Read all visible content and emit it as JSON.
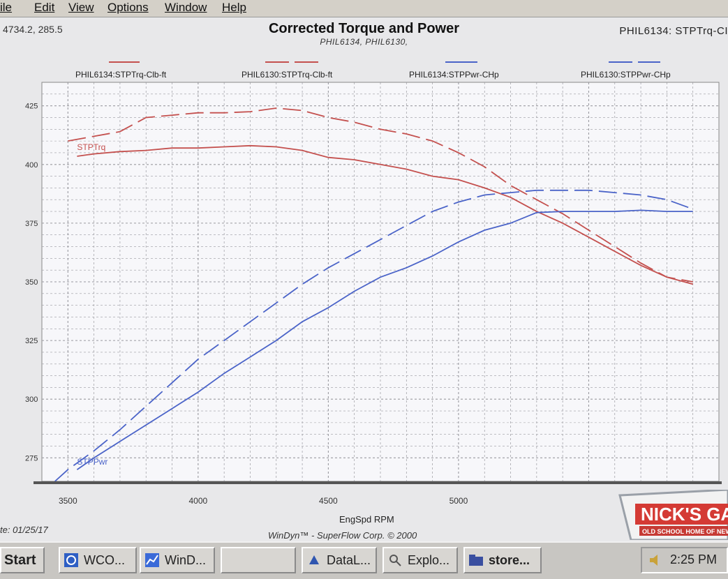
{
  "menu": [
    "ile",
    "Edit",
    "View",
    "Options",
    "Window",
    "Help"
  ],
  "coord_readout": "4734.2, 285.5",
  "corner_label": "PHIL6134: STPTrq-CI",
  "date_label": "te: 01/25/17",
  "footer": "WinDyn™ - SuperFlow Corp. © 2000",
  "logo_text": "NICK'S GARA",
  "logo_subtext": "OLD SCHOOL HOME OF NEW M",
  "taskbar": {
    "start": "Start",
    "items": [
      "WCO...",
      "WinD...",
      "",
      "DataL...",
      "Explo...",
      "store..."
    ],
    "clock": "2:25 PM"
  },
  "colors": {
    "torque": "#c4504e",
    "power": "#4a63c8",
    "grid": "#9a9aa0",
    "plot_bg": "#f7f7fa"
  },
  "chart_data": {
    "type": "line",
    "title": "Corrected Torque and Power",
    "subtitle": "PHIL6134, PHIL6130,",
    "xlabel": "EngSpd RPM",
    "ylabel": "",
    "xlim": [
      3400,
      6000
    ],
    "ylim": [
      265,
      435
    ],
    "x_ticks": [
      3500,
      4000,
      4500,
      5000
    ],
    "x_tick_labels": [
      "3500",
      "4000",
      "4500",
      "5000"
    ],
    "y_ticks": [
      275,
      300,
      325,
      350,
      375,
      400,
      425
    ],
    "y_tick_labels": [
      "275",
      "300",
      "325",
      "350",
      "375",
      "400",
      "425"
    ],
    "grid": true,
    "legend_position": "top",
    "series": [
      {
        "name": "PHIL6134:STPTrq-Clb-ft",
        "color": "#c4504e",
        "dash": false,
        "x": [
          3535,
          3600,
          3700,
          3800,
          3900,
          4000,
          4100,
          4200,
          4300,
          4400,
          4500,
          4600,
          4700,
          4800,
          4900,
          5000,
          5100,
          5200,
          5300,
          5400,
          5500,
          5600,
          5700,
          5800,
          5900
        ],
        "y": [
          403.5,
          404.5,
          405.5,
          406,
          407,
          407,
          407.5,
          408,
          407.5,
          406,
          403,
          402,
          400,
          398,
          395,
          393.5,
          390,
          386,
          380,
          375,
          369,
          363,
          357,
          352,
          349
        ]
      },
      {
        "name": "PHIL6130:STPTrq-Clb-ft",
        "color": "#c4504e",
        "dash": true,
        "x": [
          3500,
          3600,
          3700,
          3800,
          3900,
          4000,
          4100,
          4200,
          4300,
          4400,
          4500,
          4600,
          4700,
          4800,
          4900,
          5000,
          5100,
          5200,
          5300,
          5400,
          5500,
          5600,
          5700,
          5800,
          5900
        ],
        "y": [
          410,
          412,
          414,
          420,
          421,
          422,
          422,
          422.5,
          424,
          423,
          420,
          418,
          415,
          413,
          410,
          405,
          399,
          391,
          385,
          379,
          372,
          365,
          358,
          352,
          350
        ]
      },
      {
        "name": "PHIL6134:STPPwr-CHp",
        "color": "#4a63c8",
        "dash": false,
        "x": [
          3535,
          3600,
          3700,
          3800,
          3900,
          4000,
          4100,
          4200,
          4300,
          4400,
          4500,
          4600,
          4700,
          4800,
          4900,
          5000,
          5100,
          5200,
          5300,
          5400,
          5500,
          5600,
          5700,
          5800,
          5900
        ],
        "y": [
          270,
          275,
          282,
          289,
          296,
          303,
          311,
          318,
          325,
          333,
          339,
          346,
          352,
          356,
          361,
          367,
          372,
          375,
          379.5,
          380,
          380,
          380,
          380.5,
          380,
          380
        ]
      },
      {
        "name": "PHIL6130:STPPwr-CHp",
        "color": "#4a63c8",
        "dash": true,
        "x": [
          3450,
          3500,
          3600,
          3700,
          3800,
          3900,
          4000,
          4100,
          4200,
          4300,
          4400,
          4500,
          4600,
          4700,
          4800,
          4900,
          5000,
          5100,
          5200,
          5300,
          5400,
          5500,
          5600,
          5700,
          5800,
          5900
        ],
        "y": [
          265,
          270,
          278,
          287,
          297,
          307,
          317,
          325,
          333,
          341,
          349,
          356,
          362,
          368,
          374,
          380,
          384,
          387,
          388,
          389,
          389,
          389,
          388,
          387,
          385,
          381
        ]
      }
    ],
    "annotations": [
      {
        "text": "STPTrq",
        "x": 3535,
        "y": 405,
        "color": "#c4504e"
      },
      {
        "text": "STPPwr",
        "x": 3535,
        "y": 271,
        "color": "#4a63c8"
      }
    ]
  }
}
